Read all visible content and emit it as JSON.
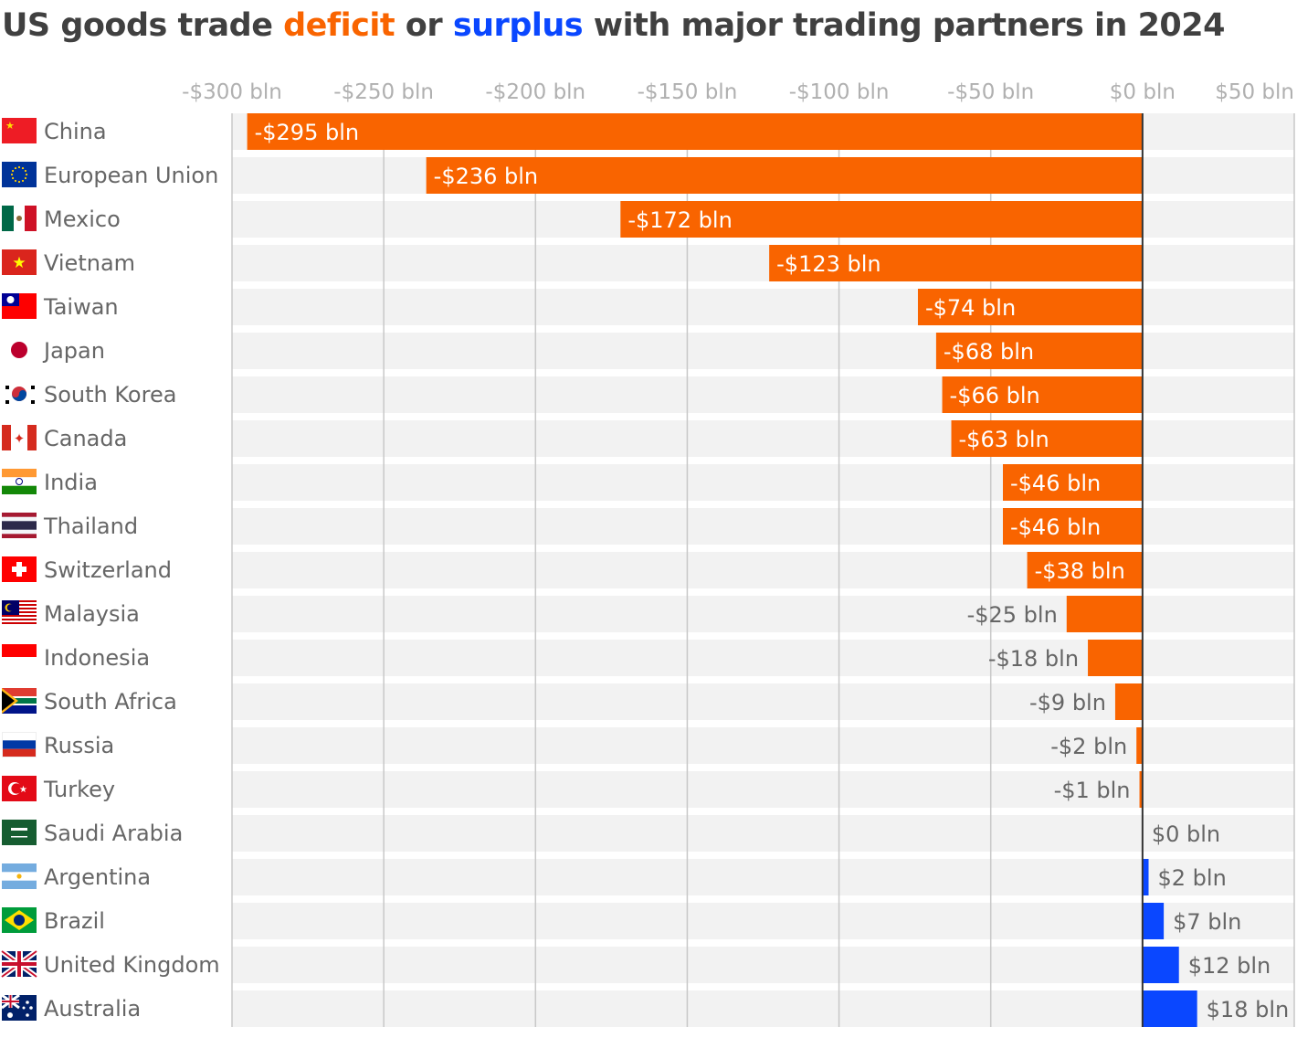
{
  "title": {
    "prefix": "US goods trade ",
    "deficit": "deficit",
    "middle": " or ",
    "surplus": "surplus",
    "suffix": " with major trading partners in 2024"
  },
  "colors": {
    "deficit": "#f96400",
    "surplus": "#0a47ff",
    "row_band": "#f2f2f2",
    "gridline": "#c8c8c8",
    "zero_line": "#333333"
  },
  "chart_data": {
    "type": "bar",
    "orientation": "horizontal",
    "title": "US goods trade deficit or surplus with major trading partners in 2024",
    "xlim": [
      -300,
      50
    ],
    "x_ticks": [
      -300,
      -250,
      -200,
      -150,
      -100,
      -50,
      0,
      50
    ],
    "x_tick_labels": [
      "-$300 bln",
      "-$250 bln",
      "-$200 bln",
      "-$150 bln",
      "-$100 bln",
      "-$50 bln",
      "$0 bln",
      "$50 bln"
    ],
    "grid": true,
    "categories": [
      "China",
      "European Union",
      "Mexico",
      "Vietnam",
      "Taiwan",
      "Japan",
      "South Korea",
      "Canada",
      "India",
      "Thailand",
      "Switzerland",
      "Malaysia",
      "Indonesia",
      "South Africa",
      "Russia",
      "Turkey",
      "Saudi Arabia",
      "Argentina",
      "Brazil",
      "United Kingdom",
      "Australia"
    ],
    "flags": [
      "cn",
      "eu",
      "mx",
      "vn",
      "tw",
      "jp",
      "kr",
      "ca",
      "in",
      "th",
      "ch",
      "my",
      "id",
      "za",
      "ru",
      "tr",
      "sa",
      "ar",
      "br",
      "gb",
      "au"
    ],
    "values": [
      -295,
      -236,
      -172,
      -123,
      -74,
      -68,
      -66,
      -63,
      -46,
      -46,
      -38,
      -25,
      -18,
      -9,
      -2,
      -1,
      0,
      2,
      7,
      12,
      18
    ],
    "data_labels": [
      "-$295 bln",
      "-$236 bln",
      "-$172 bln",
      "-$123 bln",
      "-$74 bln",
      "-$68 bln",
      "-$66 bln",
      "-$63 bln",
      "-$46 bln",
      "-$46 bln",
      "-$38 bln",
      "-$25 bln",
      "-$18 bln",
      "-$9 bln",
      "-$2 bln",
      "-$1 bln",
      "$0 bln",
      "$2 bln",
      "$7 bln",
      "$12 bln",
      "$18 bln"
    ]
  }
}
